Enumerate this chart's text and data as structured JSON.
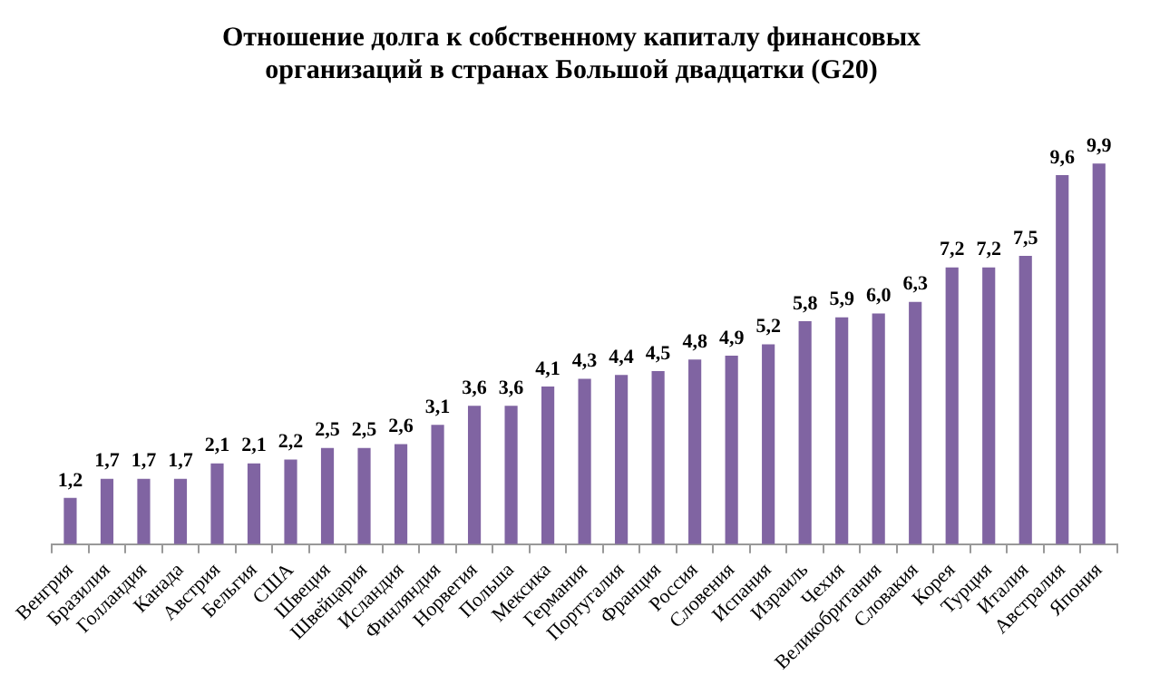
{
  "chart_data": {
    "type": "bar",
    "title": "Отношение долга к собственному капиталу финансовых\nорганизаций в странах Большой двадцатки (G20)",
    "categories": [
      "Венгрия",
      "Бразилия",
      "Голландия",
      "Канада",
      "Австрия",
      "Бельгия",
      "США",
      "Швеция",
      "Швейцария",
      "Исландия",
      "Финляндия",
      "Норвегия",
      "Польша",
      "Мексика",
      "Германия",
      "Португалия",
      "Франция",
      "Россия",
      "Словения",
      "Испания",
      "Израиль",
      "Чехия",
      "Великобритания",
      "Словакия",
      "Корея",
      "Турция",
      "Италия",
      "Австралия",
      "Япония"
    ],
    "values": [
      1.2,
      1.7,
      1.7,
      1.7,
      2.1,
      2.1,
      2.2,
      2.5,
      2.5,
      2.6,
      3.1,
      3.6,
      3.6,
      4.1,
      4.3,
      4.4,
      4.5,
      4.8,
      4.9,
      5.2,
      5.8,
      5.9,
      6.0,
      6.3,
      7.2,
      7.2,
      7.5,
      9.6,
      9.9
    ],
    "value_labels": [
      "1,2",
      "1,7",
      "1,7",
      "1,7",
      "2,1",
      "2,1",
      "2,2",
      "2,5",
      "2,5",
      "2,6",
      "3,1",
      "3,6",
      "3,6",
      "4,1",
      "4,3",
      "4,4",
      "4,5",
      "4,8",
      "4,9",
      "5,2",
      "5,8",
      "5,9",
      "6,0",
      "6,3",
      "7,2",
      "7,2",
      "7,5",
      "9,6",
      "9,9"
    ],
    "color": "#8064a2",
    "grid": false,
    "legend": false
  }
}
